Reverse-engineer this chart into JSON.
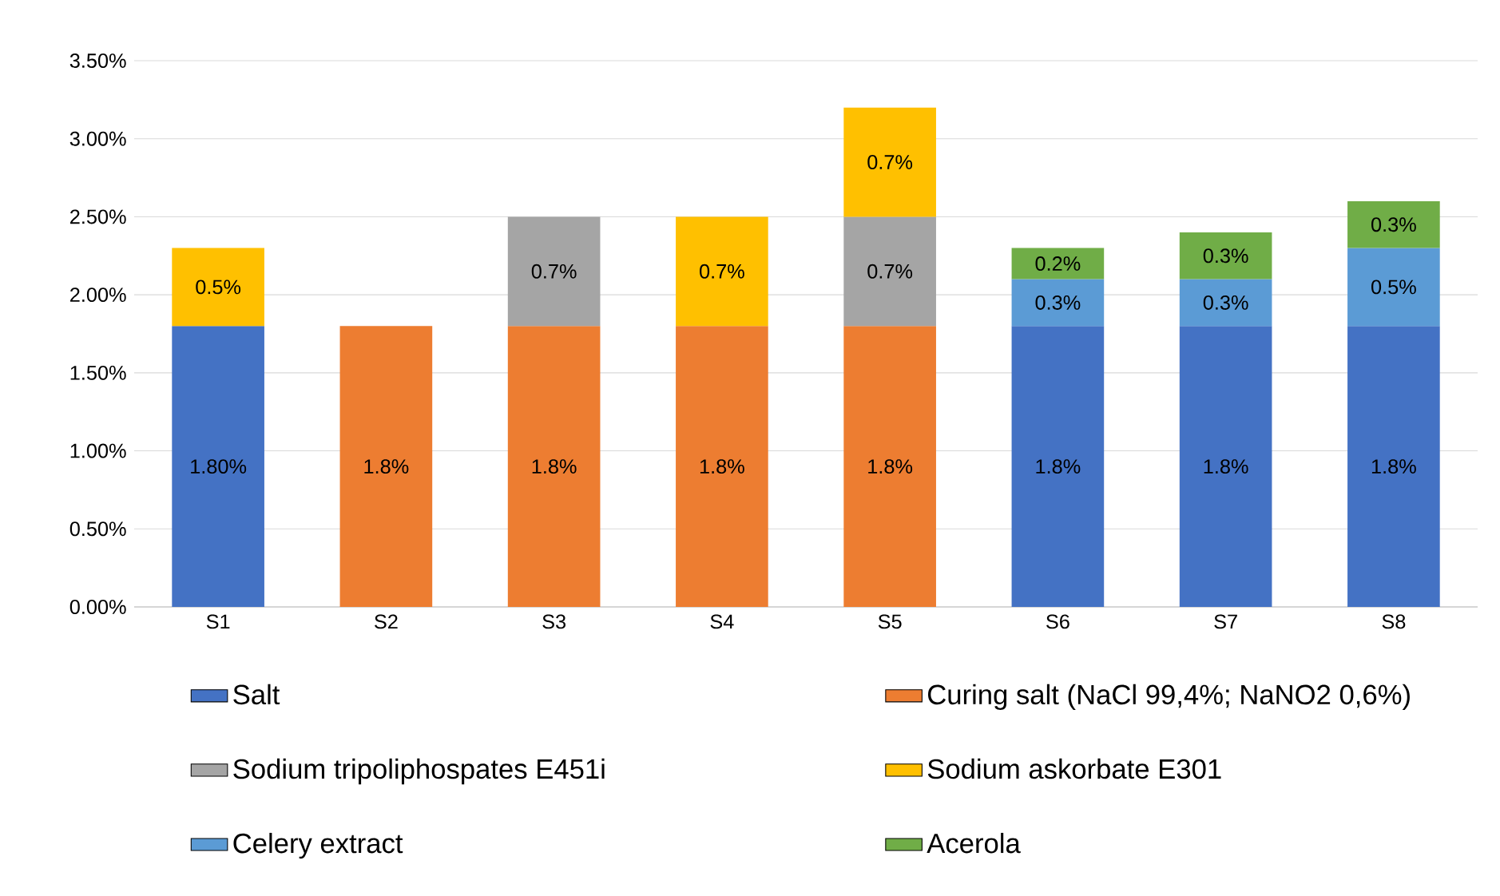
{
  "chart_data": {
    "type": "bar",
    "stacked": true,
    "categories": [
      "S1",
      "S2",
      "S3",
      "S4",
      "S5",
      "S6",
      "S7",
      "S8"
    ],
    "series": [
      {
        "name": "Salt",
        "color": "#4472c4",
        "values": [
          1.8,
          null,
          null,
          null,
          null,
          1.8,
          1.8,
          1.8
        ],
        "value_labels": [
          "1.80%",
          null,
          null,
          null,
          null,
          "1.8%",
          "1.8%",
          "1.8%"
        ]
      },
      {
        "name": "Curing salt (NaCl 99,4%; NaNO2 0,6%)",
        "color": "#ed7d31",
        "values": [
          null,
          1.8,
          1.8,
          1.8,
          1.8,
          null,
          null,
          null
        ],
        "value_labels": [
          null,
          "1.8%",
          "1.8%",
          "1.8%",
          "1.8%",
          null,
          null,
          null
        ]
      },
      {
        "name": "Sodium tripoliphospates E451i",
        "color": "#a5a5a5",
        "values": [
          null,
          null,
          0.7,
          null,
          0.7,
          null,
          null,
          null
        ],
        "value_labels": [
          null,
          null,
          "0.7%",
          null,
          "0.7%",
          null,
          null,
          null
        ]
      },
      {
        "name": "Sodium askorbate E301",
        "color": "#ffc000",
        "values": [
          0.5,
          null,
          null,
          0.7,
          0.7,
          null,
          null,
          null
        ],
        "value_labels": [
          "0.5%",
          null,
          null,
          "0.7%",
          "0.7%",
          null,
          null,
          null
        ]
      },
      {
        "name": "Celery extract",
        "color": "#5b9bd5",
        "values": [
          null,
          null,
          null,
          null,
          null,
          0.3,
          0.3,
          0.5
        ],
        "value_labels": [
          null,
          null,
          null,
          null,
          null,
          "0.3%",
          "0.3%",
          "0.5%"
        ]
      },
      {
        "name": "Acerola",
        "color": "#70ad47",
        "values": [
          null,
          null,
          null,
          null,
          null,
          0.2,
          0.3,
          0.3
        ],
        "value_labels": [
          null,
          null,
          null,
          null,
          null,
          "0.2%",
          "0.3%",
          "0.3%"
        ]
      }
    ],
    "ylim": [
      0,
      3.5
    ],
    "yticks": [
      {
        "value": 0,
        "label": "0.00%"
      },
      {
        "value": 0.5,
        "label": "0.50%"
      },
      {
        "value": 1,
        "label": "1.00%"
      },
      {
        "value": 1.5,
        "label": "1.50%"
      },
      {
        "value": 2,
        "label": "2.00%"
      },
      {
        "value": 2.5,
        "label": "2.50%"
      },
      {
        "value": 3,
        "label": "3.00%"
      },
      {
        "value": 3.5,
        "label": "3.50%"
      }
    ],
    "grid": "y",
    "legend": "bottom"
  }
}
